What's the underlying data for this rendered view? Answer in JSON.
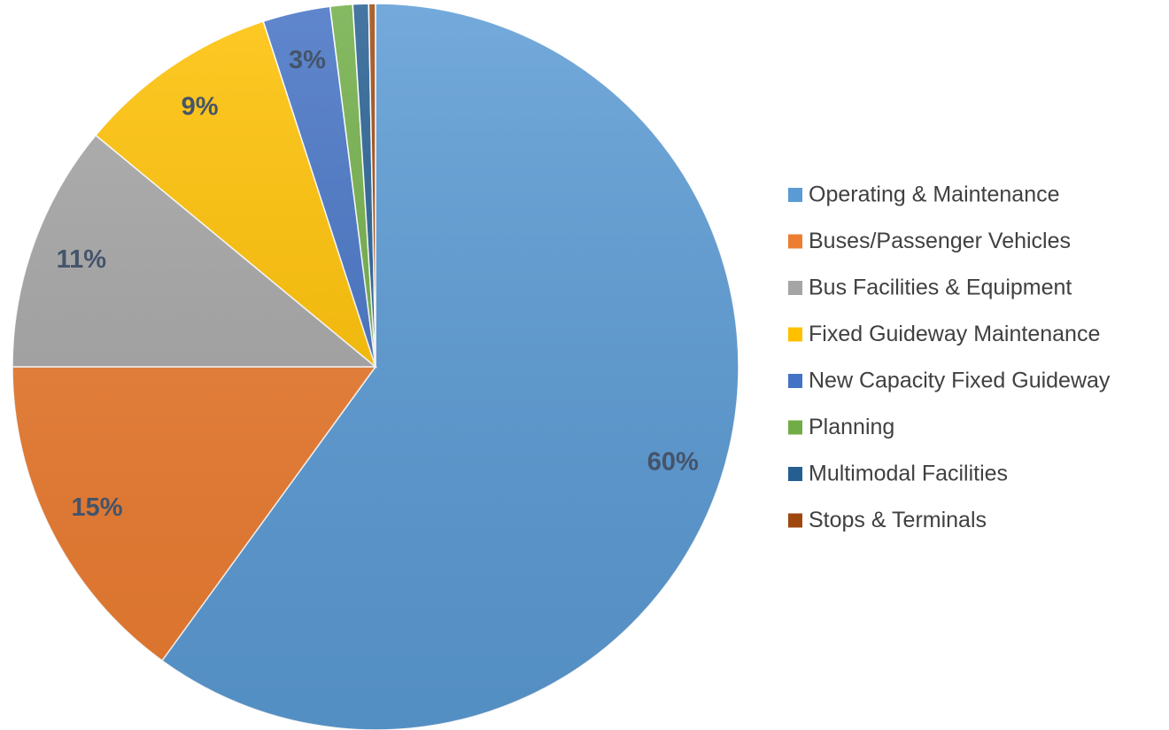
{
  "chart_data": {
    "type": "pie",
    "categories": [
      "Operating & Maintenance",
      "Buses/Passenger Vehicles",
      "Bus Facilities & Equipment",
      "Fixed Guideway Maintenance",
      "New Capacity Fixed Guideway",
      "Planning",
      "Multimodal Facilities",
      "Stops & Terminals"
    ],
    "values": [
      60,
      15,
      11,
      9,
      3,
      1,
      0.7,
      0.3
    ],
    "value_labels": [
      "60%",
      "15%",
      "11%",
      "9%",
      "3%",
      null,
      null,
      null
    ],
    "colors": [
      "#5b9bd5",
      "#ed7d31",
      "#a5a5a5",
      "#ffc000",
      "#4472c4",
      "#70ad47",
      "#255e91",
      "#9e480e"
    ],
    "legend": "right"
  }
}
